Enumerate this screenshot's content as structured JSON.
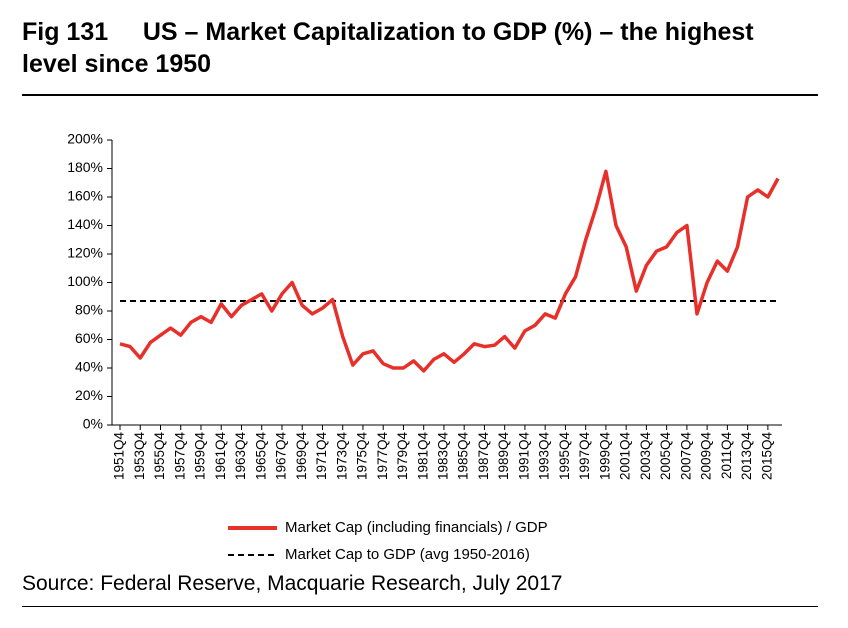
{
  "chart_data": {
    "type": "line",
    "title": "Fig 131     US – Market Capitalization to GDP (%) – the highest level since 1950",
    "source": "Source: Federal Reserve, Macquarie Research, July 2017",
    "categories": [
      "1951Q4",
      null,
      "1953Q4",
      null,
      "1955Q4",
      null,
      "1957Q4",
      null,
      "1959Q4",
      null,
      "1961Q4",
      null,
      "1963Q4",
      null,
      "1965Q4",
      null,
      "1967Q4",
      null,
      "1969Q4",
      null,
      "1971Q4",
      null,
      "1973Q4",
      null,
      "1975Q4",
      null,
      "1977Q4",
      null,
      "1979Q4",
      null,
      "1981Q4",
      null,
      "1983Q4",
      null,
      "1985Q4",
      null,
      "1987Q4",
      null,
      "1989Q4",
      null,
      "1991Q4",
      null,
      "1993Q4",
      null,
      "1995Q4",
      null,
      "1997Q4",
      null,
      "1999Q4",
      null,
      "2001Q4",
      null,
      "2003Q4",
      null,
      "2005Q4",
      null,
      "2007Q4",
      null,
      "2009Q4",
      null,
      "2011Q4",
      null,
      "2013Q4",
      null,
      "2015Q4",
      null
    ],
    "series": [
      {
        "name": "Market Cap (including financials) / GDP",
        "color": "#e8302a",
        "values": [
          57,
          55,
          47,
          58,
          63,
          68,
          63,
          72,
          76,
          72,
          85,
          76,
          84,
          88,
          92,
          80,
          92,
          100,
          84,
          78,
          82,
          88,
          62,
          42,
          50,
          52,
          43,
          40,
          40,
          45,
          38,
          46,
          50,
          44,
          50,
          57,
          55,
          56,
          62,
          54,
          66,
          70,
          78,
          75,
          92,
          104,
          130,
          152,
          178,
          140,
          125,
          94,
          112,
          122,
          125,
          135,
          140,
          78,
          100,
          115,
          108,
          125,
          160,
          165,
          160,
          173
        ]
      },
      {
        "name": "Market Cap to GDP (avg 1950-2016)",
        "color": "#000000",
        "style": "dashed",
        "value": 87
      }
    ],
    "ylim": [
      0,
      200
    ],
    "yticks": [
      {
        "value": 0,
        "label": "0%"
      },
      {
        "value": 20,
        "label": "20%"
      },
      {
        "value": 40,
        "label": "40%"
      },
      {
        "value": 60,
        "label": "60%"
      },
      {
        "value": 80,
        "label": "80%"
      },
      {
        "value": 100,
        "label": "100%"
      },
      {
        "value": 120,
        "label": "120%"
      },
      {
        "value": 140,
        "label": "140%"
      },
      {
        "value": 160,
        "label": "160%"
      },
      {
        "value": 180,
        "label": "180%"
      },
      {
        "value": 200,
        "label": "200%"
      }
    ],
    "grid": false,
    "legend": "bottom"
  }
}
